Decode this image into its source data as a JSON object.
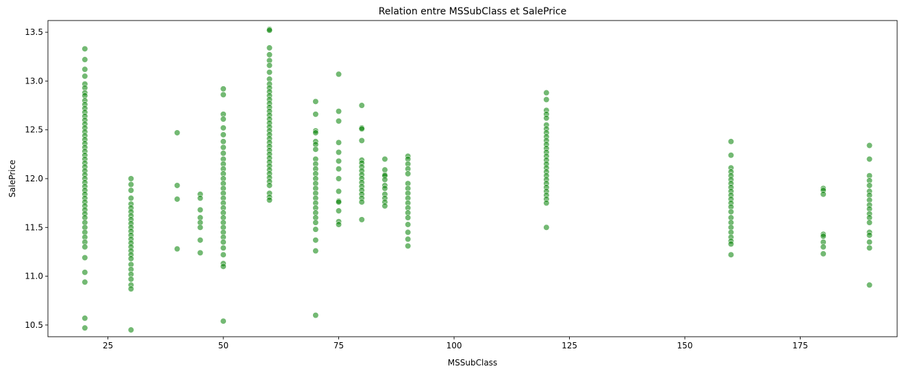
{
  "chart_data": {
    "type": "scatter",
    "title": "Relation entre MSSubClass et SalePrice",
    "xlabel": "MSSubClass",
    "ylabel": "SalePrice",
    "xlim": [
      12,
      196
    ],
    "ylim": [
      10.38,
      13.62
    ],
    "x_ticks": [
      25,
      50,
      75,
      100,
      125,
      150,
      175
    ],
    "y_ticks": [
      10.5,
      11.0,
      11.5,
      12.0,
      12.5,
      13.0,
      13.5
    ],
    "x_tick_labels": [
      "25",
      "50",
      "75",
      "100",
      "125",
      "150",
      "175"
    ],
    "y_tick_labels": [
      "10.5",
      "11.0",
      "11.5",
      "12.0",
      "12.5",
      "13.0",
      "13.5"
    ],
    "grid": false,
    "color": "#008000",
    "points": [
      {
        "x": 20,
        "y": 13.33
      },
      {
        "x": 20,
        "y": 13.22
      },
      {
        "x": 20,
        "y": 13.12
      },
      {
        "x": 20,
        "y": 13.05
      },
      {
        "x": 20,
        "y": 12.97
      },
      {
        "x": 20,
        "y": 12.93
      },
      {
        "x": 20,
        "y": 12.88
      },
      {
        "x": 20,
        "y": 12.85
      },
      {
        "x": 20,
        "y": 12.8
      },
      {
        "x": 20,
        "y": 12.76
      },
      {
        "x": 20,
        "y": 12.72
      },
      {
        "x": 20,
        "y": 12.68
      },
      {
        "x": 20,
        "y": 12.64
      },
      {
        "x": 20,
        "y": 12.6
      },
      {
        "x": 20,
        "y": 12.56
      },
      {
        "x": 20,
        "y": 12.52
      },
      {
        "x": 20,
        "y": 12.48
      },
      {
        "x": 20,
        "y": 12.44
      },
      {
        "x": 20,
        "y": 12.4
      },
      {
        "x": 20,
        "y": 12.36
      },
      {
        "x": 20,
        "y": 12.32
      },
      {
        "x": 20,
        "y": 12.28
      },
      {
        "x": 20,
        "y": 12.24
      },
      {
        "x": 20,
        "y": 12.2
      },
      {
        "x": 20,
        "y": 12.16
      },
      {
        "x": 20,
        "y": 12.12
      },
      {
        "x": 20,
        "y": 12.08
      },
      {
        "x": 20,
        "y": 12.04
      },
      {
        "x": 20,
        "y": 12.0
      },
      {
        "x": 20,
        "y": 11.96
      },
      {
        "x": 20,
        "y": 11.92
      },
      {
        "x": 20,
        "y": 11.88
      },
      {
        "x": 20,
        "y": 11.84
      },
      {
        "x": 20,
        "y": 11.8
      },
      {
        "x": 20,
        "y": 11.76
      },
      {
        "x": 20,
        "y": 11.72
      },
      {
        "x": 20,
        "y": 11.68
      },
      {
        "x": 20,
        "y": 11.64
      },
      {
        "x": 20,
        "y": 11.6
      },
      {
        "x": 20,
        "y": 11.55
      },
      {
        "x": 20,
        "y": 11.5
      },
      {
        "x": 20,
        "y": 11.45
      },
      {
        "x": 20,
        "y": 11.4
      },
      {
        "x": 20,
        "y": 11.35
      },
      {
        "x": 20,
        "y": 11.3
      },
      {
        "x": 20,
        "y": 11.19
      },
      {
        "x": 20,
        "y": 11.04
      },
      {
        "x": 20,
        "y": 10.94
      },
      {
        "x": 20,
        "y": 10.57
      },
      {
        "x": 20,
        "y": 10.47
      },
      {
        "x": 30,
        "y": 12.0
      },
      {
        "x": 30,
        "y": 11.94
      },
      {
        "x": 30,
        "y": 11.88
      },
      {
        "x": 30,
        "y": 11.8
      },
      {
        "x": 30,
        "y": 11.74
      },
      {
        "x": 30,
        "y": 11.7
      },
      {
        "x": 30,
        "y": 11.66
      },
      {
        "x": 30,
        "y": 11.62
      },
      {
        "x": 30,
        "y": 11.58
      },
      {
        "x": 30,
        "y": 11.54
      },
      {
        "x": 30,
        "y": 11.5
      },
      {
        "x": 30,
        "y": 11.46
      },
      {
        "x": 30,
        "y": 11.42
      },
      {
        "x": 30,
        "y": 11.38
      },
      {
        "x": 30,
        "y": 11.34
      },
      {
        "x": 30,
        "y": 11.3
      },
      {
        "x": 30,
        "y": 11.26
      },
      {
        "x": 30,
        "y": 11.22
      },
      {
        "x": 30,
        "y": 11.18
      },
      {
        "x": 30,
        "y": 11.12
      },
      {
        "x": 30,
        "y": 11.07
      },
      {
        "x": 30,
        "y": 11.02
      },
      {
        "x": 30,
        "y": 10.97
      },
      {
        "x": 30,
        "y": 10.91
      },
      {
        "x": 30,
        "y": 10.87
      },
      {
        "x": 30,
        "y": 10.45
      },
      {
        "x": 40,
        "y": 12.47
      },
      {
        "x": 40,
        "y": 11.93
      },
      {
        "x": 40,
        "y": 11.79
      },
      {
        "x": 40,
        "y": 11.28
      },
      {
        "x": 45,
        "y": 11.84
      },
      {
        "x": 45,
        "y": 11.8
      },
      {
        "x": 45,
        "y": 11.68
      },
      {
        "x": 45,
        "y": 11.6
      },
      {
        "x": 45,
        "y": 11.55
      },
      {
        "x": 45,
        "y": 11.5
      },
      {
        "x": 45,
        "y": 11.37
      },
      {
        "x": 45,
        "y": 11.24
      },
      {
        "x": 50,
        "y": 12.92
      },
      {
        "x": 50,
        "y": 12.86
      },
      {
        "x": 50,
        "y": 12.66
      },
      {
        "x": 50,
        "y": 12.61
      },
      {
        "x": 50,
        "y": 12.52
      },
      {
        "x": 50,
        "y": 12.45
      },
      {
        "x": 50,
        "y": 12.38
      },
      {
        "x": 50,
        "y": 12.32
      },
      {
        "x": 50,
        "y": 12.26
      },
      {
        "x": 50,
        "y": 12.2
      },
      {
        "x": 50,
        "y": 12.15
      },
      {
        "x": 50,
        "y": 12.1
      },
      {
        "x": 50,
        "y": 12.05
      },
      {
        "x": 50,
        "y": 12.0
      },
      {
        "x": 50,
        "y": 11.95
      },
      {
        "x": 50,
        "y": 11.9
      },
      {
        "x": 50,
        "y": 11.85
      },
      {
        "x": 50,
        "y": 11.8
      },
      {
        "x": 50,
        "y": 11.75
      },
      {
        "x": 50,
        "y": 11.7
      },
      {
        "x": 50,
        "y": 11.65
      },
      {
        "x": 50,
        "y": 11.6
      },
      {
        "x": 50,
        "y": 11.55
      },
      {
        "x": 50,
        "y": 11.5
      },
      {
        "x": 50,
        "y": 11.45
      },
      {
        "x": 50,
        "y": 11.4
      },
      {
        "x": 50,
        "y": 11.35
      },
      {
        "x": 50,
        "y": 11.29
      },
      {
        "x": 50,
        "y": 11.22
      },
      {
        "x": 50,
        "y": 11.13
      },
      {
        "x": 50,
        "y": 11.1
      },
      {
        "x": 50,
        "y": 10.54
      },
      {
        "x": 60,
        "y": 13.53
      },
      {
        "x": 60,
        "y": 13.52
      },
      {
        "x": 60,
        "y": 13.34
      },
      {
        "x": 60,
        "y": 13.27
      },
      {
        "x": 60,
        "y": 13.21
      },
      {
        "x": 60,
        "y": 13.16
      },
      {
        "x": 60,
        "y": 13.09
      },
      {
        "x": 60,
        "y": 13.02
      },
      {
        "x": 60,
        "y": 12.97
      },
      {
        "x": 60,
        "y": 12.93
      },
      {
        "x": 60,
        "y": 12.89
      },
      {
        "x": 60,
        "y": 12.85
      },
      {
        "x": 60,
        "y": 12.81
      },
      {
        "x": 60,
        "y": 12.77
      },
      {
        "x": 60,
        "y": 12.73
      },
      {
        "x": 60,
        "y": 12.69
      },
      {
        "x": 60,
        "y": 12.65
      },
      {
        "x": 60,
        "y": 12.61
      },
      {
        "x": 60,
        "y": 12.57
      },
      {
        "x": 60,
        "y": 12.53
      },
      {
        "x": 60,
        "y": 12.49
      },
      {
        "x": 60,
        "y": 12.45
      },
      {
        "x": 60,
        "y": 12.41
      },
      {
        "x": 60,
        "y": 12.37
      },
      {
        "x": 60,
        "y": 12.33
      },
      {
        "x": 60,
        "y": 12.29
      },
      {
        "x": 60,
        "y": 12.25
      },
      {
        "x": 60,
        "y": 12.21
      },
      {
        "x": 60,
        "y": 12.17
      },
      {
        "x": 60,
        "y": 12.13
      },
      {
        "x": 60,
        "y": 12.09
      },
      {
        "x": 60,
        "y": 12.05
      },
      {
        "x": 60,
        "y": 12.01
      },
      {
        "x": 60,
        "y": 11.97
      },
      {
        "x": 60,
        "y": 11.93
      },
      {
        "x": 60,
        "y": 11.85
      },
      {
        "x": 60,
        "y": 11.81
      },
      {
        "x": 60,
        "y": 11.78
      },
      {
        "x": 70,
        "y": 12.79
      },
      {
        "x": 70,
        "y": 12.66
      },
      {
        "x": 70,
        "y": 12.49
      },
      {
        "x": 70,
        "y": 12.47
      },
      {
        "x": 70,
        "y": 12.38
      },
      {
        "x": 70,
        "y": 12.35
      },
      {
        "x": 70,
        "y": 12.3
      },
      {
        "x": 70,
        "y": 12.2
      },
      {
        "x": 70,
        "y": 12.15
      },
      {
        "x": 70,
        "y": 12.1
      },
      {
        "x": 70,
        "y": 12.05
      },
      {
        "x": 70,
        "y": 12.0
      },
      {
        "x": 70,
        "y": 11.95
      },
      {
        "x": 70,
        "y": 11.9
      },
      {
        "x": 70,
        "y": 11.85
      },
      {
        "x": 70,
        "y": 11.8
      },
      {
        "x": 70,
        "y": 11.75
      },
      {
        "x": 70,
        "y": 11.7
      },
      {
        "x": 70,
        "y": 11.65
      },
      {
        "x": 70,
        "y": 11.6
      },
      {
        "x": 70,
        "y": 11.55
      },
      {
        "x": 70,
        "y": 11.48
      },
      {
        "x": 70,
        "y": 11.37
      },
      {
        "x": 70,
        "y": 11.26
      },
      {
        "x": 70,
        "y": 10.6
      },
      {
        "x": 75,
        "y": 13.07
      },
      {
        "x": 75,
        "y": 12.69
      },
      {
        "x": 75,
        "y": 12.59
      },
      {
        "x": 75,
        "y": 12.37
      },
      {
        "x": 75,
        "y": 12.27
      },
      {
        "x": 75,
        "y": 12.18
      },
      {
        "x": 75,
        "y": 12.1
      },
      {
        "x": 75,
        "y": 12.0
      },
      {
        "x": 75,
        "y": 11.87
      },
      {
        "x": 75,
        "y": 11.77
      },
      {
        "x": 75,
        "y": 11.76
      },
      {
        "x": 75,
        "y": 11.67
      },
      {
        "x": 75,
        "y": 11.56
      },
      {
        "x": 75,
        "y": 11.53
      },
      {
        "x": 80,
        "y": 12.75
      },
      {
        "x": 80,
        "y": 12.52
      },
      {
        "x": 80,
        "y": 12.51
      },
      {
        "x": 80,
        "y": 12.39
      },
      {
        "x": 80,
        "y": 12.19
      },
      {
        "x": 80,
        "y": 12.16
      },
      {
        "x": 80,
        "y": 12.12
      },
      {
        "x": 80,
        "y": 12.08
      },
      {
        "x": 80,
        "y": 12.04
      },
      {
        "x": 80,
        "y": 12.0
      },
      {
        "x": 80,
        "y": 11.96
      },
      {
        "x": 80,
        "y": 11.92
      },
      {
        "x": 80,
        "y": 11.88
      },
      {
        "x": 80,
        "y": 11.84
      },
      {
        "x": 80,
        "y": 11.8
      },
      {
        "x": 80,
        "y": 11.76
      },
      {
        "x": 80,
        "y": 11.58
      },
      {
        "x": 85,
        "y": 12.2
      },
      {
        "x": 85,
        "y": 12.09
      },
      {
        "x": 85,
        "y": 12.04
      },
      {
        "x": 85,
        "y": 12.03
      },
      {
        "x": 85,
        "y": 11.99
      },
      {
        "x": 85,
        "y": 11.93
      },
      {
        "x": 85,
        "y": 11.9
      },
      {
        "x": 85,
        "y": 11.84
      },
      {
        "x": 85,
        "y": 11.8
      },
      {
        "x": 85,
        "y": 11.76
      },
      {
        "x": 85,
        "y": 11.72
      },
      {
        "x": 90,
        "y": 12.23
      },
      {
        "x": 90,
        "y": 12.2
      },
      {
        "x": 90,
        "y": 12.15
      },
      {
        "x": 90,
        "y": 12.1
      },
      {
        "x": 90,
        "y": 12.05
      },
      {
        "x": 90,
        "y": 11.95
      },
      {
        "x": 90,
        "y": 11.9
      },
      {
        "x": 90,
        "y": 11.85
      },
      {
        "x": 90,
        "y": 11.8
      },
      {
        "x": 90,
        "y": 11.75
      },
      {
        "x": 90,
        "y": 11.7
      },
      {
        "x": 90,
        "y": 11.65
      },
      {
        "x": 90,
        "y": 11.6
      },
      {
        "x": 90,
        "y": 11.53
      },
      {
        "x": 90,
        "y": 11.45
      },
      {
        "x": 90,
        "y": 11.38
      },
      {
        "x": 90,
        "y": 11.31
      },
      {
        "x": 120,
        "y": 12.88
      },
      {
        "x": 120,
        "y": 12.81
      },
      {
        "x": 120,
        "y": 12.7
      },
      {
        "x": 120,
        "y": 12.66
      },
      {
        "x": 120,
        "y": 12.62
      },
      {
        "x": 120,
        "y": 12.55
      },
      {
        "x": 120,
        "y": 12.51
      },
      {
        "x": 120,
        "y": 12.47
      },
      {
        "x": 120,
        "y": 12.43
      },
      {
        "x": 120,
        "y": 12.39
      },
      {
        "x": 120,
        "y": 12.35
      },
      {
        "x": 120,
        "y": 12.31
      },
      {
        "x": 120,
        "y": 12.27
      },
      {
        "x": 120,
        "y": 12.23
      },
      {
        "x": 120,
        "y": 12.19
      },
      {
        "x": 120,
        "y": 12.15
      },
      {
        "x": 120,
        "y": 12.11
      },
      {
        "x": 120,
        "y": 12.07
      },
      {
        "x": 120,
        "y": 12.03
      },
      {
        "x": 120,
        "y": 11.99
      },
      {
        "x": 120,
        "y": 11.95
      },
      {
        "x": 120,
        "y": 11.91
      },
      {
        "x": 120,
        "y": 11.87
      },
      {
        "x": 120,
        "y": 11.83
      },
      {
        "x": 120,
        "y": 11.79
      },
      {
        "x": 120,
        "y": 11.75
      },
      {
        "x": 120,
        "y": 11.5
      },
      {
        "x": 160,
        "y": 12.38
      },
      {
        "x": 160,
        "y": 12.24
      },
      {
        "x": 160,
        "y": 12.11
      },
      {
        "x": 160,
        "y": 12.07
      },
      {
        "x": 160,
        "y": 12.03
      },
      {
        "x": 160,
        "y": 11.99
      },
      {
        "x": 160,
        "y": 11.95
      },
      {
        "x": 160,
        "y": 11.91
      },
      {
        "x": 160,
        "y": 11.87
      },
      {
        "x": 160,
        "y": 11.83
      },
      {
        "x": 160,
        "y": 11.79
      },
      {
        "x": 160,
        "y": 11.75
      },
      {
        "x": 160,
        "y": 11.71
      },
      {
        "x": 160,
        "y": 11.66
      },
      {
        "x": 160,
        "y": 11.6
      },
      {
        "x": 160,
        "y": 11.55
      },
      {
        "x": 160,
        "y": 11.5
      },
      {
        "x": 160,
        "y": 11.45
      },
      {
        "x": 160,
        "y": 11.4
      },
      {
        "x": 160,
        "y": 11.36
      },
      {
        "x": 160,
        "y": 11.33
      },
      {
        "x": 160,
        "y": 11.22
      },
      {
        "x": 180,
        "y": 11.9
      },
      {
        "x": 180,
        "y": 11.88
      },
      {
        "x": 180,
        "y": 11.84
      },
      {
        "x": 180,
        "y": 11.43
      },
      {
        "x": 180,
        "y": 11.41
      },
      {
        "x": 180,
        "y": 11.35
      },
      {
        "x": 180,
        "y": 11.3
      },
      {
        "x": 180,
        "y": 11.23
      },
      {
        "x": 190,
        "y": 12.34
      },
      {
        "x": 190,
        "y": 12.2
      },
      {
        "x": 190,
        "y": 12.03
      },
      {
        "x": 190,
        "y": 11.98
      },
      {
        "x": 190,
        "y": 11.93
      },
      {
        "x": 190,
        "y": 11.87
      },
      {
        "x": 190,
        "y": 11.83
      },
      {
        "x": 190,
        "y": 11.78
      },
      {
        "x": 190,
        "y": 11.73
      },
      {
        "x": 190,
        "y": 11.69
      },
      {
        "x": 190,
        "y": 11.64
      },
      {
        "x": 190,
        "y": 11.6
      },
      {
        "x": 190,
        "y": 11.55
      },
      {
        "x": 190,
        "y": 11.45
      },
      {
        "x": 190,
        "y": 11.42
      },
      {
        "x": 190,
        "y": 11.35
      },
      {
        "x": 190,
        "y": 11.29
      },
      {
        "x": 190,
        "y": 10.91
      }
    ]
  }
}
